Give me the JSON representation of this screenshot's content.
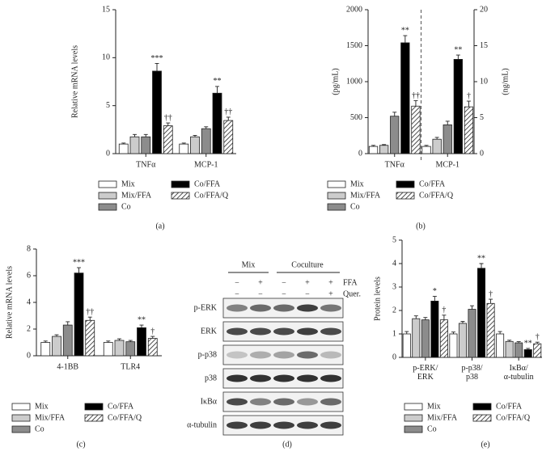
{
  "chart_data": [
    {
      "type": "bar",
      "panel_label": "(a)",
      "y_label": "Relative mRNA levels",
      "categories": [
        "TNFα",
        "MCP-1"
      ],
      "series": [
        {
          "name": "Mix",
          "color": "#ffffff",
          "values": [
            1.0,
            1.0
          ],
          "errors": [
            0.1,
            0.1
          ]
        },
        {
          "name": "Mix/FFA",
          "color": "#cccccc",
          "values": [
            1.75,
            1.75
          ],
          "errors": [
            0.25,
            0.15
          ]
        },
        {
          "name": "Co",
          "color": "#8c8c8c",
          "values": [
            1.75,
            2.6
          ],
          "errors": [
            0.25,
            0.2
          ]
        },
        {
          "name": "Co/FFA",
          "color": "#000000",
          "values": [
            8.6,
            6.3
          ],
          "errors": [
            0.8,
            0.7
          ],
          "annotations": [
            "***",
            "**"
          ]
        },
        {
          "name": "Co/FFA/Q",
          "color": "#ffffff",
          "hatch": true,
          "values": [
            2.9,
            3.45
          ],
          "errors": [
            0.3,
            0.35
          ],
          "annotations": [
            "††",
            "††"
          ]
        }
      ],
      "ylim": [
        0,
        15
      ],
      "yticks": [
        0,
        5,
        10,
        15
      ]
    },
    {
      "type": "bar",
      "panel_label": "(b)",
      "y_label": "(pg/mL)",
      "y2_label": "(ng/mL)",
      "categories": [
        "TNFα",
        "MCP-1"
      ],
      "category_axis": [
        "y",
        "y2"
      ],
      "divider": true,
      "series": [
        {
          "name": "Mix",
          "color": "#ffffff",
          "values": [
            100,
            1.0
          ],
          "errors": [
            15,
            0.15
          ]
        },
        {
          "name": "Mix/FFA",
          "color": "#cccccc",
          "values": [
            115,
            2.0
          ],
          "errors": [
            10,
            0.25
          ]
        },
        {
          "name": "Co",
          "color": "#8c8c8c",
          "values": [
            520,
            4.0
          ],
          "errors": [
            55,
            0.5
          ]
        },
        {
          "name": "Co/FFA",
          "color": "#000000",
          "values": [
            1540,
            13.1
          ],
          "errors": [
            100,
            0.6
          ],
          "annotations": [
            "**",
            "**"
          ]
        },
        {
          "name": "Co/FFA/Q",
          "color": "#ffffff",
          "hatch": true,
          "values": [
            660,
            6.5
          ],
          "errors": [
            75,
            0.8
          ],
          "annotations": [
            "††",
            "†"
          ]
        }
      ],
      "ylim": [
        0,
        2000
      ],
      "yticks": [
        0,
        500,
        1000,
        1500,
        2000
      ],
      "y2lim": [
        0,
        20
      ],
      "y2ticks": [
        0,
        5,
        10,
        15,
        20
      ]
    },
    {
      "type": "bar",
      "panel_label": "(c)",
      "y_label": "Relative mRNA levels",
      "categories": [
        "4-1BB",
        "TLR4"
      ],
      "series": [
        {
          "name": "Mix",
          "color": "#ffffff",
          "values": [
            1.0,
            1.0
          ],
          "errors": [
            0.1,
            0.1
          ]
        },
        {
          "name": "Mix/FFA",
          "color": "#cccccc",
          "values": [
            1.45,
            1.15
          ],
          "errors": [
            0.12,
            0.12
          ]
        },
        {
          "name": "Co",
          "color": "#8c8c8c",
          "values": [
            2.3,
            1.05
          ],
          "errors": [
            0.25,
            0.1
          ]
        },
        {
          "name": "Co/FFA",
          "color": "#000000",
          "values": [
            6.2,
            2.1
          ],
          "errors": [
            0.4,
            0.2
          ],
          "annotations": [
            "***",
            "**"
          ]
        },
        {
          "name": "Co/FFA/Q",
          "color": "#ffffff",
          "hatch": true,
          "values": [
            2.65,
            1.3
          ],
          "errors": [
            0.25,
            0.15
          ],
          "annotations": [
            "††",
            "†"
          ]
        }
      ],
      "ylim": [
        0,
        8
      ],
      "yticks": [
        0,
        2,
        4,
        6,
        8
      ]
    },
    {
      "type": "bar",
      "panel_label": "(e)",
      "y_label": "Protein levels",
      "categories": [
        "p-ERK/\nERK",
        "p-p38/\np38",
        "IκBα/\nα-tubulin"
      ],
      "series": [
        {
          "name": "Mix",
          "color": "#ffffff",
          "values": [
            1.0,
            1.0,
            1.0
          ],
          "errors": [
            0.1,
            0.08,
            0.1
          ]
        },
        {
          "name": "Mix/FFA",
          "color": "#cccccc",
          "values": [
            1.65,
            1.45,
            0.68
          ],
          "errors": [
            0.12,
            0.08,
            0.05
          ]
        },
        {
          "name": "Co",
          "color": "#8c8c8c",
          "values": [
            1.6,
            2.05,
            0.62
          ],
          "errors": [
            0.1,
            0.15,
            0.05
          ]
        },
        {
          "name": "Co/FFA",
          "color": "#000000",
          "values": [
            2.4,
            3.8,
            0.33
          ],
          "errors": [
            0.2,
            0.2,
            0.05
          ],
          "annotations": [
            "*",
            "**",
            "**"
          ]
        },
        {
          "name": "Co/FFA/Q",
          "color": "#ffffff",
          "hatch": true,
          "values": [
            1.6,
            2.3,
            0.58
          ],
          "errors": [
            0.2,
            0.18,
            0.07
          ],
          "annotations": [
            "†",
            "†",
            "†"
          ]
        }
      ],
      "ylim": [
        0,
        5
      ],
      "yticks": [
        0,
        1,
        2,
        3,
        4,
        5
      ]
    }
  ],
  "blot": {
    "panel_label": "(d)",
    "groups": [
      "Mix",
      "Coculture"
    ],
    "treatments": [
      {
        "name": "FFA",
        "signs": [
          "−",
          "+",
          "−",
          "+",
          "+"
        ]
      },
      {
        "name": "Quer.",
        "signs": [
          "−",
          "−",
          "−",
          "−",
          "+"
        ]
      }
    ],
    "rows": [
      "p-ERK",
      "ERK",
      "p-p38",
      "p38",
      "IκBα",
      "α-tubulin"
    ]
  }
}
